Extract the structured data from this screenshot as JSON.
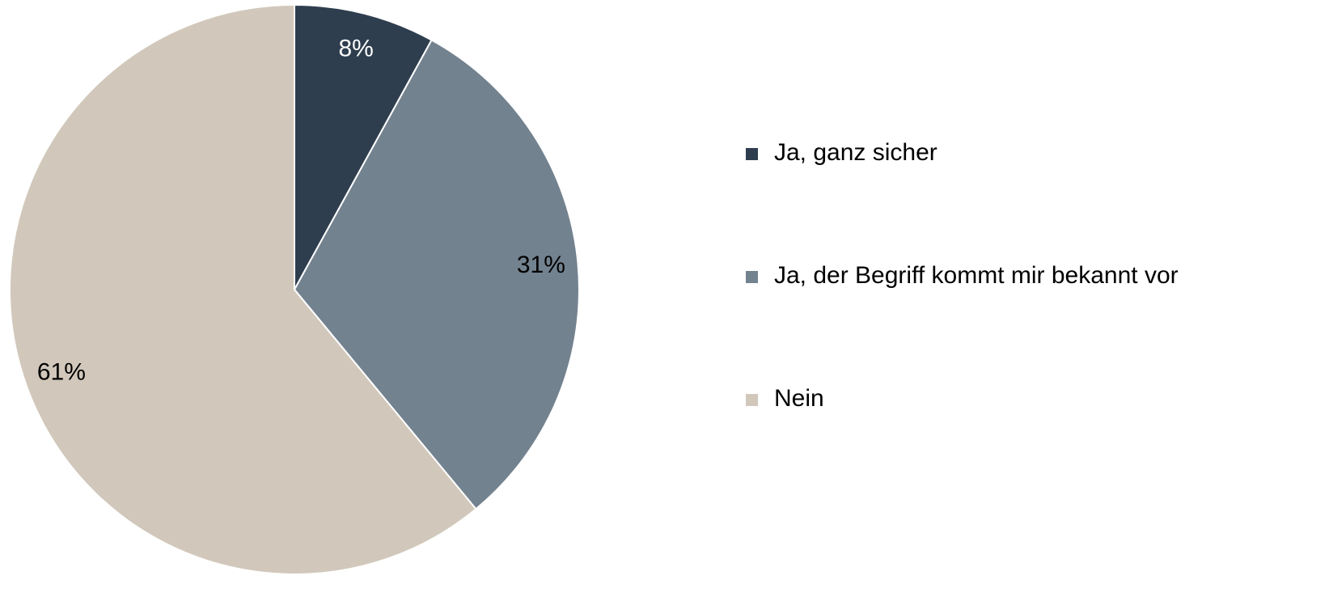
{
  "chart_data": {
    "type": "pie",
    "categories": [
      "Ja, ganz sicher",
      "Ja, der Begriff kommt mir bekannt vor",
      "Nein"
    ],
    "values": [
      8,
      31,
      61
    ],
    "value_labels": [
      "8%",
      "31%",
      "61%"
    ],
    "colors": [
      "#2e3e4e",
      "#73828f",
      "#d1c8bb"
    ],
    "legend": "right"
  }
}
